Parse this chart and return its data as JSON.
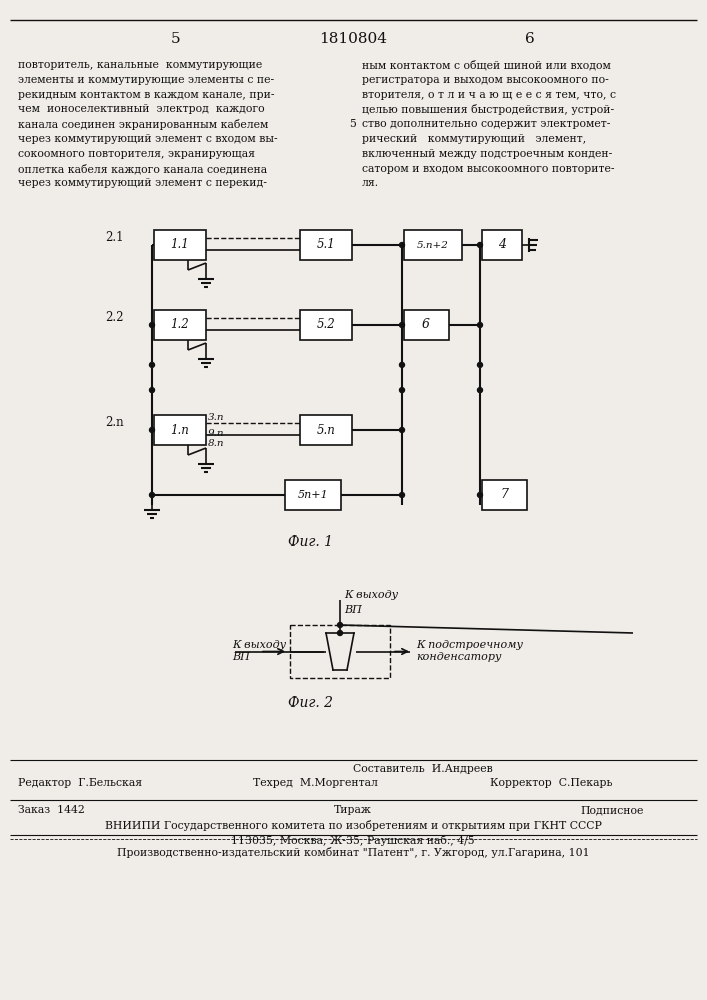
{
  "page_number_left": "5",
  "patent_number": "1810804",
  "page_number_right": "6",
  "text_left": "повторитель, канальные  коммутирующие\nэлементы и коммутирующие элементы с пе-\nрекидным контактом в каждом канале, при-\nчем  ионоселективный  электрод  каждого\nканала соединен экранированным кабелем\nчерез коммутирующий элемент с входом вы-\nсокоомного повторителя, экранирующая\nоплетка кабеля каждого канала соединена\nчерез коммутирующий элемент с перекид-",
  "text_right": "ным контактом с общей шиной или входом\nрегистратора и выходом высокоомного по-\nвторителя, о т л и ч а ю щ е е с я тем, что, с\nцелью повышения быстродействия, устрой-\nство дополнительно содержит электромет-\nрический   коммутирующий   элемент,\nвключенный между подстроечным конден-\nсатором и входом высокоомного повторите-\nля.",
  "line_number_5": "5",
  "fig1_caption": "Фиг. 1",
  "fig2_caption": "Фиг. 2",
  "fig2_label_top_line1": "К выходу",
  "fig2_label_top_line2": "ВП",
  "fig2_label_left_line1": "К выходу",
  "fig2_label_left_line2": "ВП",
  "fig2_label_right_line1": "К подстроечному",
  "fig2_label_right_line2": "конденсатору",
  "editor_row1_left": "Редактор  Г.Бельская",
  "editor_row1_right": "Составитель  И.Андреев",
  "editor_row2_left": "Техред  М.Моргентал",
  "editor_row2_right": "Корректор  С.Пекарь",
  "order_label": "Заказ  1442",
  "tirazh_label": "Тираж",
  "podpisnoe_label": "Подписное",
  "vniiipi_line1": "ВНИИПИ Государственного комитета по изобретениям и открытиям при ГКНТ СССР",
  "vniiipi_line2": "113035, Москва, Ж-35, Раушская наб., 4/5",
  "kombinat_line": "Производственно-издательский комбинат \"Патент\", г. Ужгород, ул.Гагарина, 101",
  "bg_color": "#f0ede8",
  "box_color": "#111111",
  "line_color": "#111111"
}
